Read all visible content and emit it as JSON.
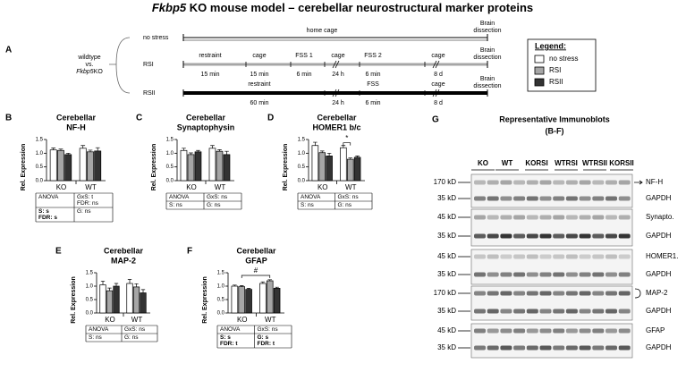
{
  "title_italic": "Fkbp5",
  "title_rest": " KO mouse model – cerebellar neurostructural marker proteins",
  "panel_a": {
    "label": "A",
    "left": {
      "line1": "wildtype",
      "line2": "vs.",
      "line3_italic": "Fkbp5",
      "line3_rest": "KO"
    },
    "end_label": [
      "Brain",
      "dissection"
    ],
    "rows": [
      {
        "name": "no stress",
        "segments": [
          {
            "label": "home cage"
          }
        ]
      },
      {
        "name": "RSI",
        "segments": [
          {
            "label": "restraint",
            "duration": "15 min"
          },
          {
            "label": "cage",
            "duration": "15 min"
          },
          {
            "label": "FSS 1",
            "duration": "6 min"
          },
          {
            "label": "cage",
            "duration": "24 h"
          },
          {
            "label": "FSS 2",
            "duration": "6 min"
          },
          {
            "label": "cage",
            "duration": "8 d"
          }
        ]
      },
      {
        "name": "RSII",
        "segments": [
          {
            "label": "restraint",
            "duration": "60 min"
          },
          {
            "duration": "24 h"
          },
          {
            "label": "FSS",
            "duration": "6 min"
          },
          {
            "label": "cage",
            "duration": "8 d"
          }
        ]
      }
    ]
  },
  "legend": {
    "title": "Legend:",
    "items": [
      {
        "name": "no stress",
        "color": "#ffffff"
      },
      {
        "name": "RSI",
        "color": "#a6a6a6"
      },
      {
        "name": "RSII",
        "color": "#333333"
      }
    ]
  },
  "chart_data": [
    {
      "type": "bar",
      "label": "B",
      "title": [
        "Cerebellar",
        "NF-H"
      ],
      "ylabel": "Rel. Expression",
      "categories": [
        "KO",
        "WT"
      ],
      "ylim": [
        0,
        1.5
      ],
      "yticks": [
        {
          "value": 0,
          "label": "0.0"
        },
        {
          "value": 0.5,
          "label": "0.5"
        },
        {
          "value": 1,
          "label": "1.0"
        },
        {
          "value": 1.5,
          "label": "1.5"
        }
      ],
      "series": [
        {
          "values": [
            1.12,
            1.18
          ],
          "errors": [
            0.07,
            0.1
          ]
        },
        {
          "values": [
            1.1,
            1.05
          ],
          "errors": [
            0.05,
            0.06
          ]
        },
        {
          "values": [
            0.95,
            1.08
          ],
          "errors": [
            0.05,
            0.12
          ]
        }
      ],
      "stats": [
        [
          {
            "lines": [
              "ANOVA"
            ]
          },
          {
            "lines": [
              "GxS: t",
              "FDR: ns"
            ]
          }
        ],
        [
          {
            "lines": [
              "S: s",
              "FDR: s"
            ],
            "bold": true
          },
          {
            "lines": [
              "G: ns"
            ]
          }
        ]
      ]
    },
    {
      "type": "bar",
      "label": "C",
      "title": [
        "Cerebellar",
        "Synaptophysin"
      ],
      "ylabel": "Rel. Expression",
      "categories": [
        "KO",
        "WT"
      ],
      "ylim": [
        0,
        1.5
      ],
      "yticks": [
        {
          "value": 0,
          "label": "0.0"
        },
        {
          "value": 0.5,
          "label": "0.5"
        },
        {
          "value": 1,
          "label": "1.0"
        },
        {
          "value": 1.5,
          "label": "1.5"
        }
      ],
      "series": [
        {
          "values": [
            1.1,
            1.18
          ],
          "errors": [
            0.08,
            0.1
          ]
        },
        {
          "values": [
            0.95,
            1.07
          ],
          "errors": [
            0.06,
            0.06
          ]
        },
        {
          "values": [
            1.05,
            0.95
          ],
          "errors": [
            0.05,
            0.12
          ]
        }
      ],
      "stats": [
        [
          {
            "lines": [
              "ANOVA"
            ]
          },
          {
            "lines": [
              "GxS: ns"
            ]
          }
        ],
        [
          {
            "lines": [
              "S: ns"
            ]
          },
          {
            "lines": [
              "G: ns"
            ]
          }
        ]
      ]
    },
    {
      "type": "bar",
      "label": "D",
      "title": [
        "Cerebellar",
        "HOMER1 b/c"
      ],
      "ylabel": "Rel. Expression",
      "categories": [
        "KO",
        "WT"
      ],
      "ylim": [
        0,
        1.5
      ],
      "yticks": [
        {
          "value": 0,
          "label": "0.0"
        },
        {
          "value": 0.5,
          "label": "0.5"
        },
        {
          "value": 1,
          "label": "1.0"
        },
        {
          "value": 1.5,
          "label": "1.5"
        }
      ],
      "series": [
        {
          "values": [
            1.28,
            1.2
          ],
          "errors": [
            0.12,
            0.08
          ]
        },
        {
          "values": [
            1.02,
            0.78
          ],
          "errors": [
            0.06,
            0.05
          ]
        },
        {
          "values": [
            0.9,
            0.85
          ],
          "errors": [
            0.1,
            0.05
          ]
        }
      ],
      "annotation": "*",
      "stats": [
        [
          {
            "lines": [
              "ANOVA"
            ]
          },
          {
            "lines": [
              "GxS: ns"
            ]
          }
        ],
        [
          {
            "lines": [
              "S: ns"
            ]
          },
          {
            "lines": [
              "G: ns"
            ]
          }
        ]
      ]
    },
    {
      "type": "bar",
      "label": "E",
      "title": [
        "Cerebellar",
        "MAP-2"
      ],
      "ylabel": "Rel. Expression",
      "categories": [
        "KO",
        "WT"
      ],
      "ylim": [
        0,
        1.5
      ],
      "yticks": [
        {
          "value": 0,
          "label": "0.0"
        },
        {
          "value": 0.5,
          "label": "0.5"
        },
        {
          "value": 1,
          "label": "1.0"
        },
        {
          "value": 1.5,
          "label": "1.5"
        }
      ],
      "series": [
        {
          "values": [
            1.05,
            1.1
          ],
          "errors": [
            0.14,
            0.15
          ]
        },
        {
          "values": [
            0.83,
            0.97
          ],
          "errors": [
            0.1,
            0.12
          ]
        },
        {
          "values": [
            1.0,
            0.75
          ],
          "errors": [
            0.1,
            0.12
          ]
        }
      ],
      "stats": [
        [
          {
            "lines": [
              "ANOVA"
            ]
          },
          {
            "lines": [
              "GxS: ns"
            ]
          }
        ],
        [
          {
            "lines": [
              "S: ns"
            ]
          },
          {
            "lines": [
              "G: ns"
            ]
          }
        ]
      ]
    },
    {
      "type": "bar",
      "label": "F",
      "title": [
        "Cerebellar",
        "GFAP"
      ],
      "ylabel": "Rel. Expression",
      "categories": [
        "KO",
        "WT"
      ],
      "ylim": [
        0,
        1.5
      ],
      "yticks": [
        {
          "value": 0,
          "label": "0.0"
        },
        {
          "value": 0.5,
          "label": "0.5"
        },
        {
          "value": 1,
          "label": "1.0"
        },
        {
          "value": 1.5,
          "label": "1.5"
        }
      ],
      "series": [
        {
          "values": [
            1.0,
            1.1
          ],
          "errors": [
            0.04,
            0.06
          ]
        },
        {
          "values": [
            0.98,
            1.2
          ],
          "errors": [
            0.04,
            0.04
          ]
        },
        {
          "values": [
            0.88,
            0.92
          ],
          "errors": [
            0.04,
            0.04
          ]
        }
      ],
      "annotation": "#",
      "stats": [
        [
          {
            "lines": [
              "ANOVA"
            ]
          },
          {
            "lines": [
              "GxS: ns"
            ]
          }
        ],
        [
          {
            "lines": [
              "S: s",
              "FDR: t"
            ],
            "bold": true
          },
          {
            "lines": [
              "G: s",
              "FDR: t"
            ],
            "bold": true
          }
        ]
      ]
    }
  ],
  "panel_g": {
    "label": "G",
    "title": [
      "Representative Immunoblots",
      "(B-F)"
    ],
    "lanes": [
      "KO",
      "WT",
      "KORSI",
      "WTRSI",
      "WTRSII",
      "KORSII"
    ],
    "rows": [
      {
        "size": "170 kD",
        "protein": "NF-H"
      },
      {
        "size": "35 kD",
        "protein": "GAPDH"
      },
      {
        "size": "45 kD",
        "protein": "Synapto."
      },
      {
        "size": "35 kD",
        "protein": "GAPDH"
      },
      {
        "size": "45 kD",
        "protein": "HOMER1."
      },
      {
        "size": "35 kD",
        "protein": "GAPDH"
      },
      {
        "size": "170 kD",
        "protein": "MAP-2"
      },
      {
        "size": "35 kD",
        "protein": "GAPDH"
      },
      {
        "size": "45 kD",
        "protein": "GFAP"
      },
      {
        "size": "35 kD",
        "protein": "GAPDH"
      }
    ]
  }
}
